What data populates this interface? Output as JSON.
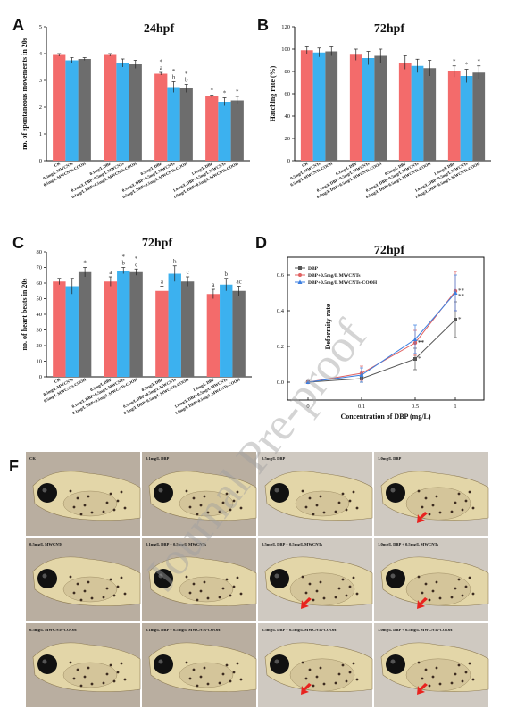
{
  "watermark": "Journal Pre-proof",
  "colors": {
    "red": "#f36b6b",
    "blue": "#3cb1ef",
    "gray": "#6d6d6d"
  },
  "panels": {
    "A": "A",
    "B": "B",
    "C": "C",
    "D": "D",
    "F": "F"
  },
  "chart_data": [
    {
      "id": "A",
      "type": "bar",
      "title": "24hpf",
      "ylabel": "no. of spontaneous movements in 20s",
      "ylim": [
        0,
        5
      ],
      "yticks": [
        0,
        1,
        2,
        3,
        4,
        5
      ],
      "categories": [
        "CK",
        "0.5mg/L MWCNTs",
        "0.5mg/L MWCNTs-COOH",
        "0.1mg/L DBP",
        "0.1mg/L DBP+0.5mg/L MWCNTs",
        "0.1mg/L DBP+0.5mg/L MWCNTs-COOH",
        "0.5mg/L DBP",
        "0.5mg/L DBP+0.5mg/L MWCNTs",
        "0.5mg/L DBP+0.5mg/L MWCNTs-COOH",
        "1.0mg/L DBP",
        "1.0mg/L DBP+0.5mg/L MWCNTs",
        "1.0mg/L DBP+0.5mg/L MWCNTs-COOH"
      ],
      "values": [
        3.95,
        3.75,
        3.8,
        3.95,
        3.65,
        3.6,
        3.25,
        2.75,
        2.7,
        2.4,
        2.2,
        2.25
      ],
      "errors": [
        0.05,
        0.1,
        0.05,
        0.05,
        0.15,
        0.15,
        0.05,
        0.2,
        0.15,
        0.05,
        0.15,
        0.15
      ],
      "annotations": [
        "",
        "",
        "",
        "",
        "",
        "",
        "*\na",
        "*\nb",
        "*\nb",
        "*",
        "*",
        "*"
      ]
    },
    {
      "id": "B",
      "type": "bar",
      "title": "72hpf",
      "ylabel": "Hatching rate (%)",
      "ylim": [
        0,
        120
      ],
      "yticks": [
        0,
        20,
        40,
        60,
        80,
        100,
        120
      ],
      "categories": [
        "CK",
        "0.5mg/L MWCNTs",
        "0.5mg/L MWCNTs-COOH",
        "0.1mg/L DBP",
        "0.1mg/L DBP+0.5mg/L MWCNTs",
        "0.1mg/L DBP+0.5mg/L MWCNTs-COOH",
        "0.5mg/L DBP",
        "0.5mg/L DBP+0.5mg/L MWCNTs",
        "0.5mg/L DBP+0.5mg/L MWCNTs-COOH",
        "1.0mg/L DBP",
        "1.0mg/L DBP+0.5mg/L MWCNTs",
        "1.0mg/L DBP+0.5mg/L MWCNTs-COOH"
      ],
      "values": [
        99,
        97,
        98,
        95,
        92,
        94,
        88,
        85,
        83,
        80,
        76,
        79
      ],
      "errors": [
        3,
        4,
        4,
        5,
        6,
        6,
        6,
        6,
        7,
        5,
        6,
        6
      ],
      "annotations": [
        "",
        "",
        "",
        "",
        "",
        "",
        "",
        "",
        "",
        "*",
        "*",
        "*"
      ]
    },
    {
      "id": "C",
      "type": "bar",
      "title": "72hpf",
      "ylabel": "no. of heart beats in 20s",
      "ylim": [
        0,
        80
      ],
      "yticks": [
        0,
        10,
        20,
        30,
        40,
        50,
        60,
        70,
        80
      ],
      "categories": [
        "CK",
        "0.5mg/L MWCNTs",
        "0.5mg/L MWCNTs-COOH",
        "0.1mg/L DBP",
        "0.1mg/L DBP+0.5mg/L MWCNTs",
        "0.1mg/L DBP+0.5mg/L MWCNTs-COOH",
        "0.5mg/L DBP",
        "0.5mg/L DBP+0.5mg/L MWCNTs",
        "0.5mg/L DBP+0.5mg/L MWCNTs-COOH",
        "1.0mg/L DBP",
        "1.0mg/L DBP+0.5mg/L MWCNTs",
        "1.0mg/L DBP+0.5mg/L MWCNTs-COOH"
      ],
      "values": [
        61,
        58,
        67,
        61,
        68,
        67,
        55,
        66,
        61,
        53,
        59,
        55
      ],
      "errors": [
        2,
        5,
        3,
        3,
        2,
        2,
        3,
        5,
        3,
        3,
        4,
        3
      ],
      "annotations": [
        "",
        "",
        "*",
        "a",
        "*\nb",
        "*\nc",
        "a",
        "b",
        "c",
        "a",
        "b",
        "ac"
      ]
    },
    {
      "id": "D",
      "type": "line",
      "title": "72hpf",
      "xlabel": "Concentration of DBP (mg/L)",
      "ylabel": "Deformity rate",
      "x": [
        0,
        0.1,
        0.5,
        1
      ],
      "xticks": [
        "0",
        "0.1",
        "0.5",
        "1"
      ],
      "ylim": [
        -0.1,
        0.7
      ],
      "yticks": [
        0.0,
        0.2,
        0.4,
        0.6
      ],
      "series": [
        {
          "name": "DBP",
          "color": "#555555",
          "values": [
            0.0,
            0.02,
            0.13,
            0.35
          ],
          "errors": [
            0.0,
            0.02,
            0.06,
            0.1
          ],
          "annotations": [
            "",
            "",
            "*",
            "*"
          ]
        },
        {
          "name": "DBP+0.5mg/L MWCNTs",
          "color": "#e06060",
          "values": [
            0.0,
            0.05,
            0.22,
            0.51
          ],
          "errors": [
            0.0,
            0.04,
            0.07,
            0.11
          ],
          "annotations": [
            "",
            "",
            "**",
            "**"
          ]
        },
        {
          "name": "DBP+0.5mg/L MWCNTs-COOH",
          "color": "#3c7fe0",
          "values": [
            0.0,
            0.04,
            0.24,
            0.5
          ],
          "errors": [
            0.0,
            0.04,
            0.08,
            0.1
          ],
          "annotations": [
            "",
            "",
            "**",
            "**"
          ]
        }
      ]
    }
  ],
  "image_grid": {
    "labels": [
      [
        "CK",
        "0.1mg/L DBP",
        "0.5mg/L DBP",
        "1.0mg/L DBP"
      ],
      [
        "0.5mg/L MWCNTs",
        "0.1mg/L DBP + 0.5mg/L MWCNTs",
        "0.5mg/L DBP + 0.5mg/L MWCNTs",
        "1.0mg/L DBP + 0.5mg/L MWCNTs"
      ],
      [
        "0.5mg/L MWCNTs-COOH",
        "0.1mg/L DBP + 0.5mg/L MWCNTs-COOH",
        "0.5mg/L DBP + 0.5mg/L MWCNTs-COOH",
        "1.0mg/L DBP + 0.5mg/L MWCNTs-COOH"
      ]
    ],
    "arrows": [
      [
        false,
        false,
        false,
        true
      ],
      [
        false,
        false,
        true,
        true
      ],
      [
        false,
        false,
        true,
        true
      ]
    ]
  }
}
